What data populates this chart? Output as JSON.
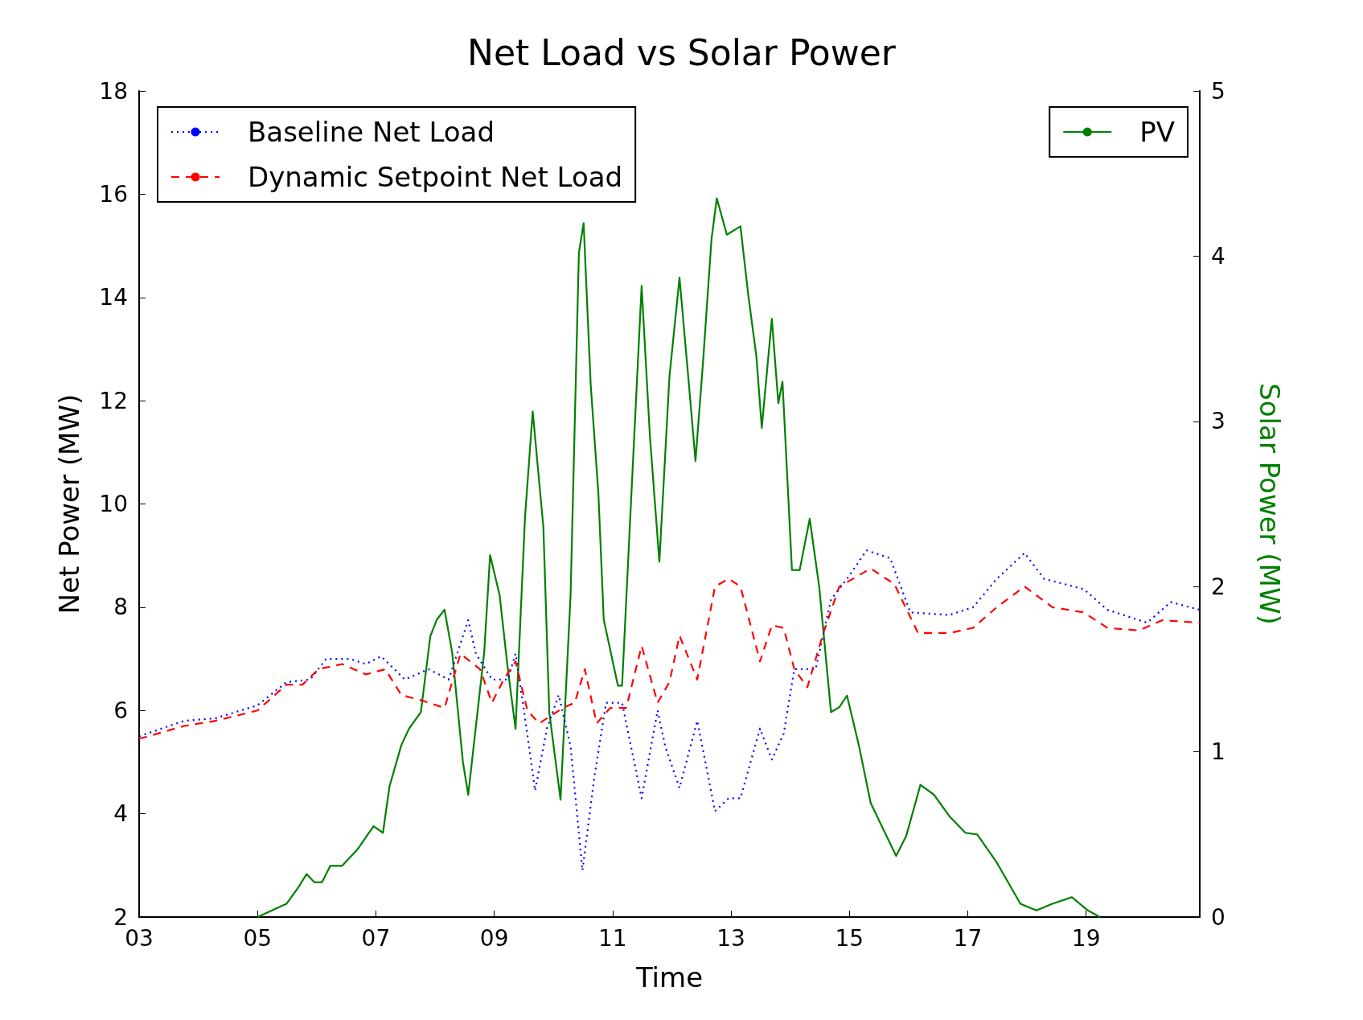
{
  "chart_data": {
    "type": "line",
    "title": "Net Load vs Solar Power",
    "xlabel": "Time",
    "ylabel": "Net Power (MW)",
    "y2label": "Solar Power (MW)",
    "xlim": [
      3,
      20.92
    ],
    "xticks": [
      {
        "value": 3,
        "label": "03"
      },
      {
        "value": 5,
        "label": "05"
      },
      {
        "value": 7,
        "label": "07"
      },
      {
        "value": 9,
        "label": "09"
      },
      {
        "value": 11,
        "label": "11"
      },
      {
        "value": 13,
        "label": "13"
      },
      {
        "value": 15,
        "label": "15"
      },
      {
        "value": 17,
        "label": "17"
      },
      {
        "value": 19,
        "label": "19"
      }
    ],
    "ylim": [
      2,
      18
    ],
    "yticks": [
      2,
      4,
      6,
      8,
      10,
      12,
      14,
      16,
      18
    ],
    "y2lim": [
      0,
      5
    ],
    "y2ticks": [
      0,
      1,
      2,
      3,
      4,
      5
    ],
    "grid": false,
    "legend": "top",
    "marker": "none",
    "series": [
      {
        "name": "Baseline Net Load",
        "color": "#0000ff",
        "line_style": "dotted",
        "x": [
          3,
          3.76,
          4.29,
          5,
          5.49,
          5.89,
          6.16,
          6.56,
          6.83,
          7.09,
          7.49,
          7.89,
          8.23,
          8.56,
          8.69,
          8.96,
          9.23,
          9.36,
          9.49,
          9.69,
          9.89,
          10.09,
          10.29,
          10.49,
          10.69,
          10.89,
          11.16,
          11.49,
          11.76,
          11.89,
          12.13,
          12.43,
          12.73,
          12.96,
          13.16,
          13.49,
          13.69,
          13.89,
          14.07,
          14.43,
          14.69,
          14.96,
          15.29,
          15.69,
          16.03,
          16.69,
          17.09,
          17.49,
          17.96,
          18.29,
          18.96,
          19.36,
          20.03,
          20.43,
          20.92
        ],
        "values": [
          5.5,
          5.8,
          5.85,
          6.1,
          6.55,
          6.6,
          7.0,
          7.0,
          6.9,
          7.05,
          6.6,
          6.8,
          6.6,
          7.75,
          7.1,
          6.6,
          6.6,
          7.1,
          6.1,
          4.45,
          5.65,
          6.3,
          5.3,
          2.9,
          4.7,
          6.15,
          6.15,
          4.3,
          6.0,
          5.3,
          4.5,
          5.8,
          4.05,
          4.3,
          4.3,
          5.65,
          5.05,
          5.55,
          6.8,
          6.8,
          8.15,
          8.55,
          9.1,
          8.95,
          7.9,
          7.85,
          8.0,
          8.55,
          9.05,
          8.55,
          8.35,
          7.95,
          7.7,
          8.1,
          7.95
        ]
      },
      {
        "name": "Dynamic Setpoint Net Load",
        "color": "#ff0000",
        "line_style": "dashed",
        "x": [
          3,
          3.76,
          4.29,
          5,
          5.49,
          5.76,
          6.03,
          6.43,
          6.83,
          7.16,
          7.43,
          7.76,
          8.16,
          8.43,
          8.76,
          8.96,
          9.16,
          9.36,
          9.56,
          9.76,
          10.16,
          10.36,
          10.53,
          10.73,
          10.96,
          11.23,
          11.49,
          11.76,
          11.96,
          12.13,
          12.43,
          12.73,
          12.96,
          13.16,
          13.49,
          13.69,
          13.89,
          14.07,
          14.29,
          14.56,
          14.83,
          15.36,
          15.76,
          16.16,
          16.69,
          17.09,
          17.49,
          17.96,
          18.43,
          18.96,
          19.36,
          19.89,
          20.29,
          20.92
        ],
        "values": [
          5.45,
          5.7,
          5.8,
          6.0,
          6.5,
          6.5,
          6.8,
          6.9,
          6.7,
          6.8,
          6.3,
          6.2,
          6.05,
          7.1,
          6.8,
          6.15,
          6.6,
          6.95,
          6.0,
          5.75,
          6.05,
          6.15,
          6.8,
          5.75,
          6.05,
          6.05,
          7.25,
          6.15,
          6.55,
          7.45,
          6.6,
          8.4,
          8.55,
          8.4,
          6.95,
          7.65,
          7.6,
          6.8,
          6.45,
          7.5,
          8.4,
          8.75,
          8.45,
          7.5,
          7.5,
          7.6,
          8.0,
          8.4,
          8.0,
          7.9,
          7.6,
          7.55,
          7.75,
          7.7
        ]
      },
      {
        "name": "PV",
        "color": "#008000",
        "line_style": "solid",
        "axis": "y2",
        "x": [
          5,
          5.49,
          5.69,
          5.83,
          5.96,
          6.09,
          6.23,
          6.43,
          6.69,
          6.96,
          7.12,
          7.23,
          7.43,
          7.56,
          7.76,
          7.92,
          8.03,
          8.16,
          8.29,
          8.47,
          8.56,
          8.67,
          8.83,
          8.93,
          9.09,
          9.23,
          9.36,
          9.52,
          9.65,
          9.83,
          9.93,
          10.12,
          10.29,
          10.43,
          10.51,
          10.63,
          10.76,
          10.85,
          11.09,
          11.16,
          11.29,
          11.49,
          11.63,
          11.79,
          11.96,
          12.13,
          12.29,
          12.4,
          12.53,
          12.67,
          12.76,
          12.93,
          13.16,
          13.29,
          13.43,
          13.52,
          13.69,
          13.8,
          13.87,
          14.03,
          14.16,
          14.33,
          14.49,
          14.69,
          14.83,
          14.96,
          15.16,
          15.36,
          15.79,
          15.96,
          16.2,
          16.43,
          16.69,
          16.96,
          17.16,
          17.49,
          17.89,
          18.16,
          18.43,
          18.76,
          19.03,
          19.23
        ],
        "values": [
          0,
          0.08,
          0.18,
          0.26,
          0.21,
          0.21,
          0.31,
          0.31,
          0.41,
          0.55,
          0.51,
          0.79,
          1.04,
          1.14,
          1.24,
          1.7,
          1.8,
          1.86,
          1.6,
          0.94,
          0.74,
          1.09,
          1.6,
          2.19,
          1.95,
          1.5,
          1.14,
          2.42,
          3.06,
          2.36,
          1.24,
          0.71,
          1.95,
          4.02,
          4.2,
          3.22,
          2.56,
          1.8,
          1.4,
          1.4,
          2.36,
          3.82,
          2.91,
          2.15,
          3.27,
          3.87,
          3.22,
          2.76,
          3.37,
          4.1,
          4.35,
          4.13,
          4.18,
          3.77,
          3.39,
          2.96,
          3.62,
          3.11,
          3.24,
          2.1,
          2.1,
          2.41,
          2.0,
          1.24,
          1.27,
          1.34,
          1.04,
          0.69,
          0.37,
          0.49,
          0.8,
          0.74,
          0.61,
          0.51,
          0.5,
          0.33,
          0.08,
          0.04,
          0.08,
          0.12,
          0.04,
          0
        ]
      }
    ]
  }
}
